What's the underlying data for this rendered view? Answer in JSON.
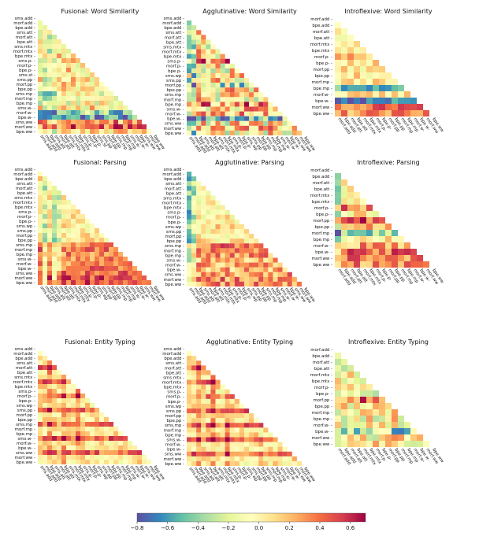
{
  "figure": {
    "type": "heatmap-grid",
    "rows": 3,
    "cols": 3
  },
  "label_sets": {
    "fusional": [
      "sms.add",
      "morf.add",
      "bpe.add",
      "sms.att",
      "morf.att",
      "bpe.att",
      "sms.mtx",
      "morf.mtx",
      "bpe.mtx",
      "sms.p-",
      "morf.p-",
      "bpe.p-",
      "sms.st",
      "sms.pp",
      "morf.pp",
      "bpe.pp",
      "sms.mp",
      "morf.mp",
      "bpe.mp",
      "sms.w-",
      "morf.w-",
      "bpe.w-",
      "sms.ww",
      "morf.ww",
      "bpe.ww"
    ],
    "fusional_ep": [
      "sms.add",
      "morf.add",
      "bpe.add",
      "sms.att",
      "morf.att",
      "bpe.att",
      "sms.mtx",
      "morf.mtx",
      "bpe.mtx",
      "sms.p-",
      "morf.p-",
      "bpe.p-",
      "sms.wp",
      "sms.pp",
      "morf.pp",
      "bpe.pp",
      "sms.mp",
      "morf.mp",
      "bpe.mp",
      "sms.w-",
      "morf.w-",
      "bpe.w-",
      "sms.ww",
      "morf.ww",
      "bpe.ww"
    ],
    "introflexive": [
      "morf.add",
      "bpe.add",
      "morf.att",
      "bpe.att",
      "morf.mtx",
      "bpe.mtx",
      "morf.p-",
      "bpe.p-",
      "morf.pp",
      "bpe.pp",
      "morf.mp",
      "bpe.mp",
      "morf.w-",
      "bpe.w-",
      "morf.ww",
      "bpe.ww"
    ]
  },
  "chart_data": [
    {
      "type": "heatmap",
      "title": "Fusional: Word Similarity",
      "labels": "fusional",
      "seed": 11,
      "bias": 0.05,
      "spread": 0.3,
      "row_bias": {
        "20": -0.45,
        "21": -0.65,
        "22": 0.25,
        "23": 0.35,
        "16": -0.15,
        "17": -0.15,
        "18": -0.12
      },
      "col_bias": {
        "0": -0.05,
        "1": -0.15,
        "2": -0.2,
        "3": -0.15
      }
    },
    {
      "type": "heatmap",
      "title": "Agglutinative: Word Similarity",
      "labels": "fusional_ep",
      "seed": 23,
      "bias": 0.02,
      "spread": 0.42,
      "row_bias": {
        "9": 0.35,
        "14": -0.3,
        "15": 0.1,
        "18": 0.3,
        "19": 0.1,
        "20": 0.25,
        "21": -0.5,
        "23": 0.2
      },
      "col_bias": {
        "0": -0.25,
        "1": -0.35,
        "2": 0.1
      }
    },
    {
      "type": "heatmap",
      "title": "Introflexive: Word Similarity",
      "labels": "introflexive",
      "seed": 37,
      "bias": 0.05,
      "spread": 0.2,
      "row_bias": {
        "6": 0.15,
        "11": -0.55,
        "13": -0.7,
        "14": 0.35,
        "15": 0.25
      },
      "col_bias": {}
    },
    {
      "type": "heatmap",
      "title": "Fusional: Parsing",
      "labels": "fusional_ep",
      "seed": 41,
      "bias": 0.03,
      "spread": 0.2,
      "row_bias": {
        "16": 0.35,
        "17": 0.35,
        "18": 0.3,
        "19": 0.3,
        "20": 0.3,
        "21": 0.35,
        "22": 0.4,
        "23": 0.45,
        "24": 0.45
      },
      "col_bias": {
        "1": -0.35,
        "3": -0.4,
        "4": -0.2
      }
    },
    {
      "type": "heatmap",
      "title": "Agglutinative: Parsing",
      "labels": "fusional_ep",
      "seed": 53,
      "bias": 0.03,
      "spread": 0.25,
      "row_bias": {
        "16": 0.35,
        "17": 0.3,
        "18": 0.25,
        "19": 0.2,
        "20": 0.2,
        "21": 0.2,
        "22": 0.25,
        "23": 0.3,
        "24": 0.3
      },
      "col_bias": {
        "0": -0.45,
        "1": -0.3
      }
    },
    {
      "type": "heatmap",
      "title": "Introflexive: Parsing",
      "labels": "introflexive",
      "seed": 67,
      "bias": 0.05,
      "spread": 0.25,
      "row_bias": {
        "6": 0.3,
        "8": 0.45,
        "9": 0.25,
        "10": -0.4,
        "12": 0.2,
        "13": 0.35,
        "14": 0.3,
        "15": 0.25
      },
      "col_bias": {
        "0": -0.35
      }
    },
    {
      "type": "heatmap",
      "title": "Fusional: Entity Typing",
      "labels": "fusional_ep",
      "seed": 71,
      "bias": 0.05,
      "spread": 0.2,
      "row_bias": {
        "4": 0.35,
        "7": 0.35,
        "10": 0.3,
        "13": 0.35,
        "16": 0.3,
        "19": 0.4,
        "22": 0.35
      },
      "col_bias": {
        "2": 0.2,
        "5": 0.2,
        "8": 0.2
      }
    },
    {
      "type": "heatmap",
      "title": "Agglutinative: Entity Typing",
      "labels": "fusional_ep",
      "seed": 83,
      "bias": 0.05,
      "spread": 0.22,
      "row_bias": {
        "4": 0.35,
        "7": 0.35,
        "10": 0.3,
        "13": 0.35,
        "16": 0.35,
        "19": 0.4,
        "22": 0.35
      },
      "col_bias": {
        "2": 0.2,
        "5": 0.2,
        "8": 0.2
      }
    },
    {
      "type": "heatmap",
      "title": "Introflexive: Entity Typing",
      "labels": "introflexive",
      "seed": 97,
      "bias": 0.0,
      "spread": 0.35,
      "row_bias": {
        "8": 0.45,
        "13": -0.35
      },
      "col_bias": {}
    }
  ],
  "colorbar": {
    "vmin": -0.8,
    "vmax": 0.7,
    "colormap": "Spectral_r",
    "stops": [
      "#5e4fa2",
      "#3288bd",
      "#66c2a5",
      "#abdda4",
      "#e6f598",
      "#ffffbf",
      "#fee08b",
      "#fdae61",
      "#f46d43",
      "#d53e4f",
      "#9e0142"
    ],
    "ticks": [
      "−0.8",
      "−0.6",
      "−0.4",
      "−0.2",
      "0.0",
      "0.2",
      "0.4",
      "0.6"
    ],
    "tick_values": [
      -0.8,
      -0.6,
      -0.4,
      -0.2,
      0.0,
      0.2,
      0.4,
      0.6
    ]
  }
}
